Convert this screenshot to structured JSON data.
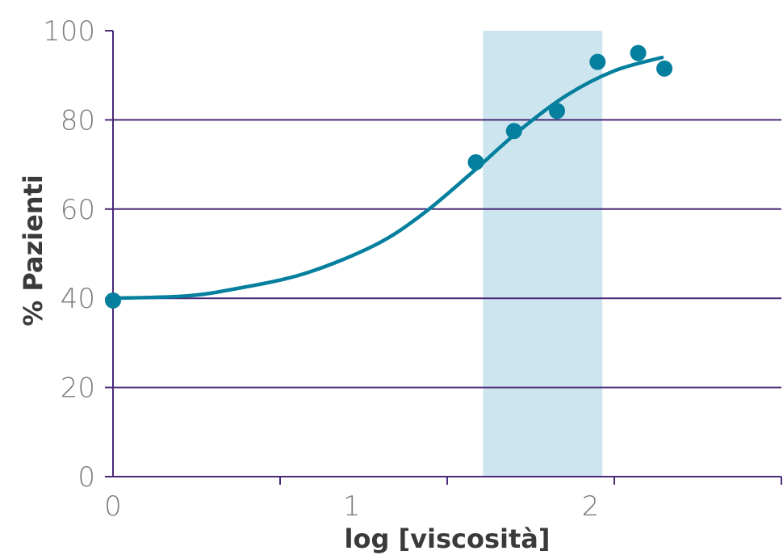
{
  "chart_data": {
    "type": "scatter",
    "xlabel": "log [viscosità]",
    "ylabel": "% Pazienti",
    "xlim": [
      0,
      2.8
    ],
    "ylim": [
      0,
      100
    ],
    "x_ticks": [
      {
        "value": 0,
        "label": "0"
      },
      {
        "value": 1,
        "label": "1"
      },
      {
        "value": 2,
        "label": "2"
      }
    ],
    "x_minor_ticks": [
      0.7,
      1.4,
      2.1,
      2.8
    ],
    "y_ticks": [
      {
        "value": 0,
        "label": "0"
      },
      {
        "value": 20,
        "label": "20"
      },
      {
        "value": 40,
        "label": "40"
      },
      {
        "value": 60,
        "label": "60"
      },
      {
        "value": 80,
        "label": "80"
      },
      {
        "value": 100,
        "label": "100"
      }
    ],
    "grid": true,
    "highlight_band": {
      "x_start": 1.55,
      "x_end": 2.05,
      "color": "#cde5ee"
    },
    "points": [
      {
        "x": 0.0,
        "y": 39.5
      },
      {
        "x": 1.52,
        "y": 70.5
      },
      {
        "x": 1.68,
        "y": 77.5
      },
      {
        "x": 1.86,
        "y": 82.0
      },
      {
        "x": 2.03,
        "y": 93.0
      },
      {
        "x": 2.2,
        "y": 95.0
      },
      {
        "x": 2.31,
        "y": 91.5
      }
    ],
    "fit_curve": [
      {
        "x": 0.0,
        "y": 40.0
      },
      {
        "x": 0.3,
        "y": 40.5
      },
      {
        "x": 0.5,
        "y": 42.0
      },
      {
        "x": 0.8,
        "y": 45.5
      },
      {
        "x": 1.1,
        "y": 52.0
      },
      {
        "x": 1.3,
        "y": 59.0
      },
      {
        "x": 1.5,
        "y": 68.0
      },
      {
        "x": 1.7,
        "y": 77.5
      },
      {
        "x": 1.9,
        "y": 85.5
      },
      {
        "x": 2.1,
        "y": 91.0
      },
      {
        "x": 2.3,
        "y": 94.0
      }
    ],
    "colors": {
      "series": "#047f9e",
      "grid": "#4a2a78",
      "band": "#cde5ee"
    }
  }
}
